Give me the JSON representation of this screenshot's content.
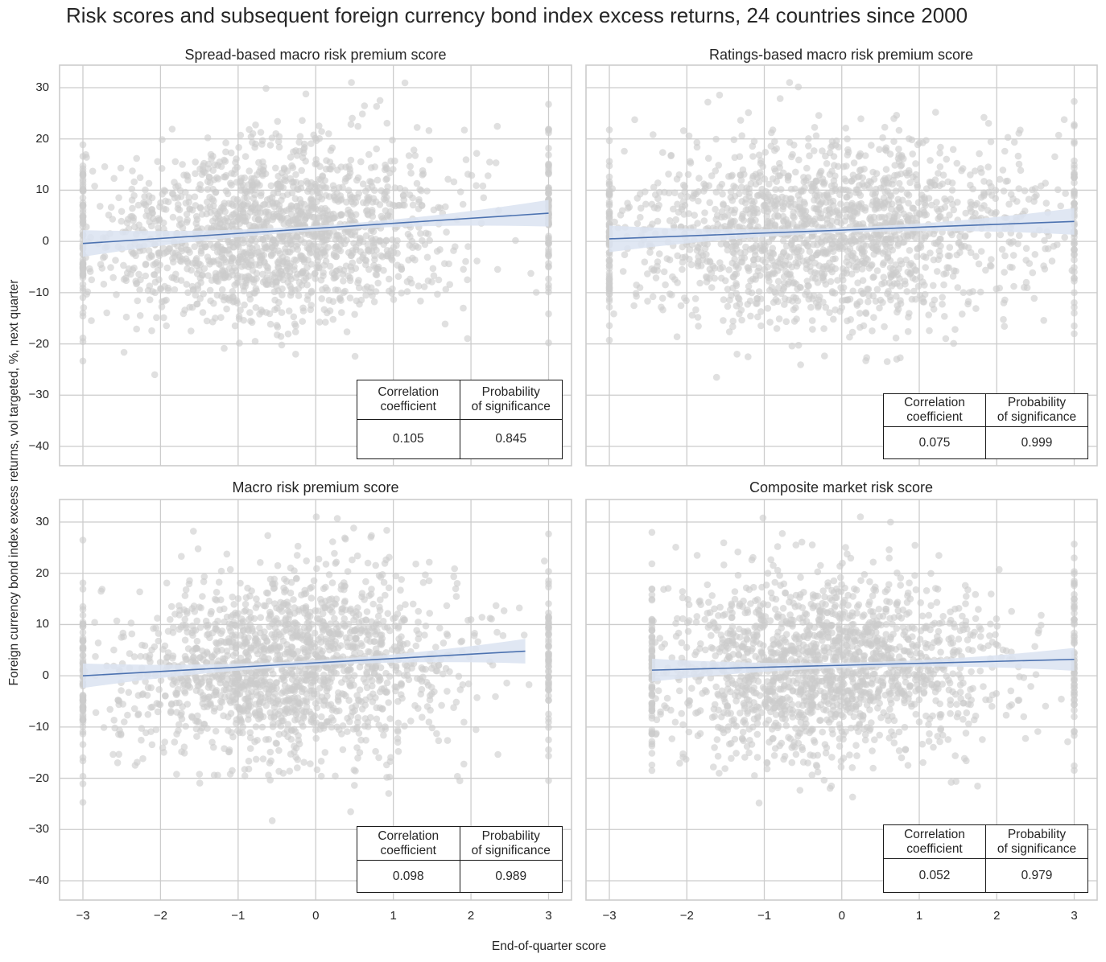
{
  "figure": {
    "title": "Risk scores and subsequent foreign currency bond index excess returns, 24 countries since 2000",
    "xlabel": "End-of-quarter score",
    "ylabel": "Foreign currency bond index excess returns, vol targeted, %, next quarter"
  },
  "colors": {
    "scatter": "#cccccc",
    "regression_line": "#4c72b0",
    "confidence_band": "#dbe3f1",
    "grid": "#cccccc",
    "axes_edge": "#cccccc",
    "table_border": "#1a1a1a"
  },
  "table_headers": {
    "corr": [
      "Correlation",
      "coefficient"
    ],
    "prob": [
      "Probability",
      "of significance"
    ]
  },
  "chart_data": [
    {
      "type": "scatter",
      "title": "Spread-based macro risk premium score",
      "xlabel": "End-of-quarter score",
      "ylabel": "Foreign currency bond index excess returns, vol targeted, %, next quarter",
      "xlim": [
        -3.3,
        3.3
      ],
      "ylim": [
        -44,
        34
      ],
      "xticks": [
        -3,
        -2,
        -1,
        0,
        1,
        2,
        3
      ],
      "yticks": [
        -40,
        -30,
        -20,
        -10,
        0,
        10,
        20,
        30
      ],
      "grid": true,
      "regression": {
        "x": [
          -3,
          3
        ],
        "y": [
          -0.4,
          5.5
        ]
      },
      "stats": {
        "correlation_coefficient": "0.105",
        "probability_of_significance": "0.845"
      },
      "scatter_summary": {
        "n_points_approx": 1800,
        "x_center": -0.5,
        "x_spread": 1.1,
        "y_center": 2,
        "y_spread": 9
      }
    },
    {
      "type": "scatter",
      "title": "Ratings-based macro risk premium score",
      "xlabel": "End-of-quarter score",
      "ylabel": "Foreign currency bond index excess returns, vol targeted, %, next quarter",
      "xlim": [
        -3.3,
        3.3
      ],
      "ylim": [
        -44,
        34
      ],
      "xticks": [
        -3,
        -2,
        -1,
        0,
        1,
        2,
        3
      ],
      "yticks": [
        -40,
        -30,
        -20,
        -10,
        0,
        10,
        20,
        30
      ],
      "grid": true,
      "regression": {
        "x": [
          -3,
          3
        ],
        "y": [
          0.5,
          3.9
        ]
      },
      "stats": {
        "correlation_coefficient": "0.075",
        "probability_of_significance": "0.999"
      },
      "scatter_summary": {
        "n_points_approx": 1800,
        "x_center": -0.2,
        "x_spread": 1.3,
        "y_center": 2,
        "y_spread": 9
      }
    },
    {
      "type": "scatter",
      "title": "Macro risk premium score",
      "xlabel": "End-of-quarter score",
      "ylabel": "Foreign currency bond index excess returns, vol targeted, %, next quarter",
      "xlim": [
        -3.3,
        3.3
      ],
      "ylim": [
        -44,
        34
      ],
      "xticks": [
        -3,
        -2,
        -1,
        0,
        1,
        2,
        3
      ],
      "yticks": [
        -40,
        -30,
        -20,
        -10,
        0,
        10,
        20,
        30
      ],
      "grid": true,
      "regression": {
        "x": [
          -3,
          2.7
        ],
        "y": [
          0.0,
          4.8
        ]
      },
      "stats": {
        "correlation_coefficient": "0.098",
        "probability_of_significance": "0.989"
      },
      "scatter_summary": {
        "n_points_approx": 1800,
        "x_center": -0.4,
        "x_spread": 1.1,
        "y_center": 2,
        "y_spread": 9
      }
    },
    {
      "type": "scatter",
      "title": "Composite market risk score",
      "xlabel": "End-of-quarter score",
      "ylabel": "Foreign currency bond index excess returns, vol targeted, %, next quarter",
      "xlim": [
        -3.3,
        3.3
      ],
      "ylim": [
        -44,
        34
      ],
      "xticks": [
        -3,
        -2,
        -1,
        0,
        1,
        2,
        3
      ],
      "yticks": [
        -40,
        -30,
        -20,
        -10,
        0,
        10,
        20,
        30
      ],
      "grid": true,
      "regression": {
        "x": [
          -2.45,
          3
        ],
        "y": [
          1.1,
          3.2
        ]
      },
      "stats": {
        "correlation_coefficient": "0.052",
        "probability_of_significance": "0.979"
      },
      "scatter_summary": {
        "n_points_approx": 1800,
        "x_center": -0.2,
        "x_spread": 1.1,
        "y_center": 2,
        "y_spread": 9
      }
    }
  ]
}
